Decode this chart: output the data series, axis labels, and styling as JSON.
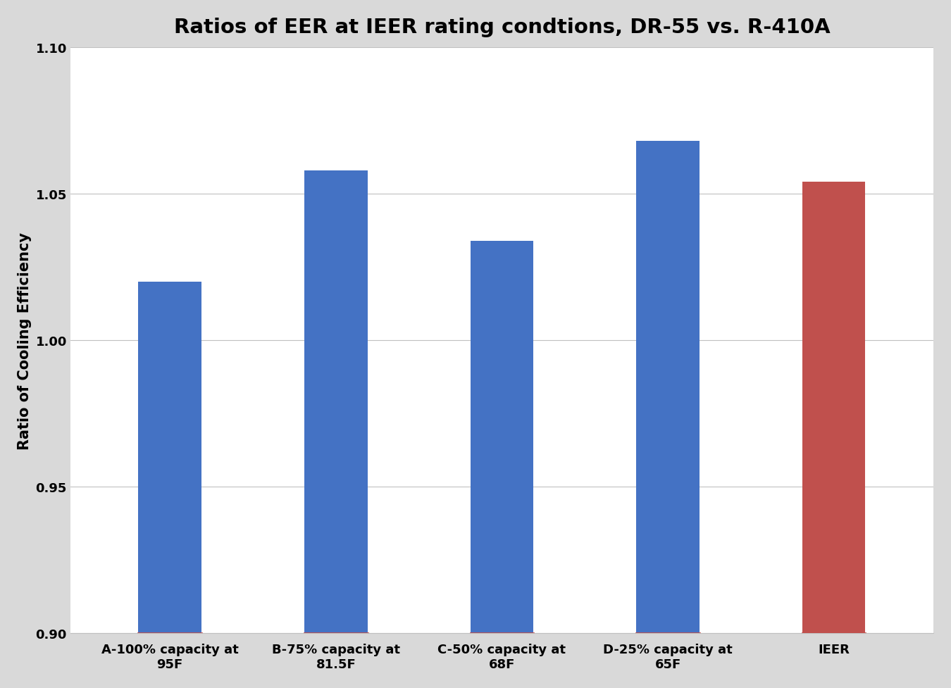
{
  "title": "Ratios of EER at IEER rating condtions, DR-55 vs. R-410A",
  "ylabel": "Ratio of Cooling Efficiency",
  "categories": [
    "A-100% capacity at\n95F",
    "B-75% capacity at\n81.5F",
    "C-50% capacity at\n68F",
    "D-25% capacity at\n65F",
    "IEER"
  ],
  "values": [
    1.02,
    1.058,
    1.034,
    1.068,
    1.054
  ],
  "bar_colors": [
    "#4472C4",
    "#4472C4",
    "#4472C4",
    "#4472C4",
    "#C0504D"
  ],
  "baseline_color": "#C0504D",
  "ylim": [
    0.9,
    1.1
  ],
  "yticks": [
    0.9,
    0.95,
    1.0,
    1.05,
    1.1
  ],
  "background_color": "#D9D9D9",
  "plot_bg_color": "#FFFFFF",
  "grid_color": "#C0C0C0",
  "title_fontsize": 21,
  "ylabel_fontsize": 15,
  "tick_fontsize": 13,
  "bar_width": 0.38
}
